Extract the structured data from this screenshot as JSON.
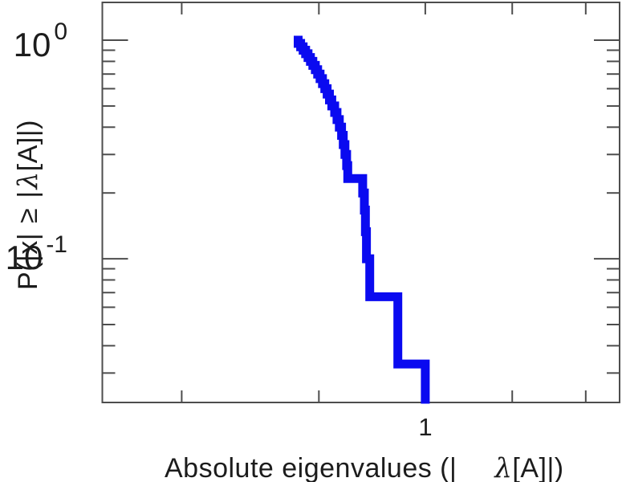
{
  "chart_data": {
    "type": "line",
    "subtype": "step-ccdf",
    "title": "",
    "xlabel": "Absolute eigenvalues (|λ[A]|)",
    "ylabel": "P(|x| ≥ |λ[A]|)",
    "xlabel_parts": {
      "part1": "Absolute eigenvalues (|",
      "lambda": "λ",
      "part2": "[A]|)"
    },
    "ylabel_parts": {
      "part1": "P(|x|",
      "geq": "≥",
      "bar": "|",
      "lambda": "λ",
      "part2": "[A]|)"
    },
    "x_scale": "log",
    "y_scale": "log",
    "xlim": [
      0.508,
      1.503
    ],
    "ylim": [
      0.022,
      1.489
    ],
    "grid": false,
    "legend": null,
    "x_ticks": {
      "major": [
        {
          "value": 1,
          "label": "1"
        }
      ],
      "minor_values": [
        0.6,
        0.8,
        1.2,
        1.4
      ]
    },
    "y_ticks": {
      "major": [
        {
          "value": 1,
          "base": "10",
          "exp": "0"
        },
        {
          "value": 0.1,
          "base": "10",
          "exp": "-1"
        }
      ],
      "minor_values": [
        0.9,
        0.8,
        0.7,
        0.6,
        0.5,
        0.4,
        0.3,
        0.2,
        0.09,
        0.08,
        0.07,
        0.06,
        0.05,
        0.04,
        0.03
      ]
    },
    "n_eigenvalues": 30,
    "eigenvalues_sorted": [
      0.766,
      0.77,
      0.774,
      0.778,
      0.782,
      0.786,
      0.79,
      0.794,
      0.798,
      0.802,
      0.806,
      0.81,
      0.814,
      0.818,
      0.822,
      0.827,
      0.831,
      0.835,
      0.839,
      0.842,
      0.845,
      0.848,
      0.85,
      0.877,
      0.88,
      0.882,
      0.884,
      0.89,
      0.944,
      1.0
    ],
    "ccdf_after_each_drop": [
      0.967,
      0.933,
      0.9,
      0.867,
      0.833,
      0.8,
      0.767,
      0.733,
      0.7,
      0.667,
      0.633,
      0.6,
      0.567,
      0.533,
      0.5,
      0.467,
      0.433,
      0.4,
      0.367,
      0.333,
      0.3,
      0.267,
      0.233,
      0.2,
      0.167,
      0.133,
      0.1,
      0.067,
      0.033,
      0.0
    ],
    "ccdf_start": 1.0,
    "series_color": "#0a0af0",
    "axis_color": "#4d4d4d",
    "line_width": 11
  }
}
